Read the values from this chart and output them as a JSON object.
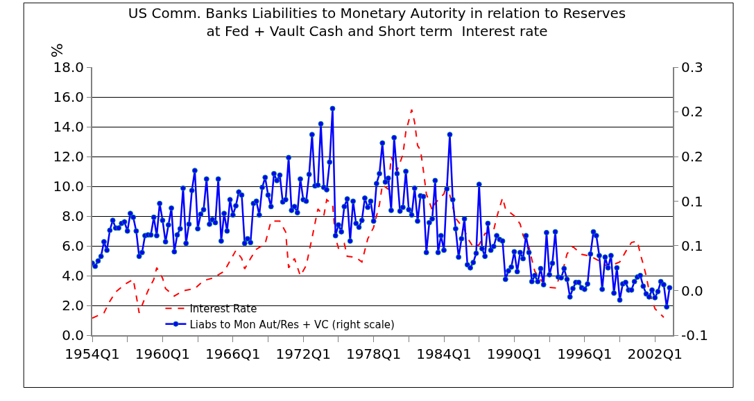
{
  "chart_data": {
    "type": "line",
    "title": "US Comm. Banks Liabilities to Monetary Autority in relation to Reserves\nat Fed + Vault Cash and Short term  Interest rate",
    "ylabel": "%",
    "categories": [
      "1954Q1",
      null,
      null,
      null,
      null,
      null,
      null,
      null,
      null,
      null,
      null,
      null,
      null,
      null,
      null,
      null,
      null,
      null,
      null,
      null,
      null,
      null,
      null,
      null,
      "1960Q1",
      null,
      null,
      null,
      null,
      null,
      null,
      null,
      null,
      null,
      null,
      null,
      null,
      null,
      null,
      null,
      null,
      null,
      null,
      null,
      null,
      null,
      null,
      null,
      "1966Q1",
      null,
      null,
      null,
      null,
      null,
      null,
      null,
      null,
      null,
      null,
      null,
      null,
      null,
      null,
      null,
      null,
      null,
      null,
      null,
      null,
      null,
      null,
      null,
      "1972Q1",
      null,
      null,
      null,
      null,
      null,
      null,
      null,
      null,
      null,
      null,
      null,
      null,
      null,
      null,
      null,
      null,
      null,
      null,
      null,
      null,
      null,
      null,
      null,
      "1978Q1",
      null,
      null,
      null,
      null,
      null,
      null,
      null,
      null,
      null,
      null,
      null,
      null,
      null,
      null,
      null,
      null,
      null,
      null,
      null,
      null,
      null,
      null,
      null,
      "1984Q1",
      null,
      null,
      null,
      null,
      null,
      null,
      null,
      null,
      null,
      null,
      null,
      null,
      null,
      null,
      null,
      null,
      null,
      null,
      null,
      null,
      null,
      null,
      null,
      "1990Q1",
      null,
      null,
      null,
      null,
      null,
      null,
      null,
      null,
      null,
      null,
      null,
      null,
      null,
      null,
      null,
      null,
      null,
      null,
      null,
      null,
      null,
      null,
      null,
      "1996Q1",
      null,
      null,
      null,
      null,
      null,
      null,
      null,
      null,
      null,
      null,
      null,
      null,
      null,
      null,
      null,
      null,
      null,
      null,
      null,
      null,
      null,
      null,
      null,
      "2002Q1",
      null,
      null,
      null,
      null,
      null
    ],
    "ylim": [
      0,
      18
    ],
    "yticks": [
      {
        "value": 0,
        "label": "0.0"
      },
      {
        "value": 2,
        "label": "2.0"
      },
      {
        "value": 4,
        "label": "4.0"
      },
      {
        "value": 6,
        "label": "6.0"
      },
      {
        "value": 8,
        "label": "8.0"
      },
      {
        "value": 10,
        "label": "10.0"
      },
      {
        "value": 12,
        "label": "12.0"
      },
      {
        "value": 14,
        "label": "14.0"
      },
      {
        "value": 16,
        "label": "16.0"
      },
      {
        "value": 18,
        "label": "18.0"
      }
    ],
    "y2lim": [
      -0.05,
      0.3
    ],
    "y2ticks": [
      {
        "value": -0.05,
        "label": "-0.1"
      },
      {
        "value": 0.008,
        "label": "0.0"
      },
      {
        "value": 0.067,
        "label": "0.1"
      },
      {
        "value": 0.125,
        "label": "0.1"
      },
      {
        "value": 0.183,
        "label": "0.2"
      },
      {
        "value": 0.242,
        "label": "0.2"
      },
      {
        "value": 0.3,
        "label": "0.3"
      }
    ],
    "grid": "y",
    "legend": "bottom left",
    "series": [
      {
        "name": "Interest Rate",
        "color": "#ff0000",
        "line_style": "dashed",
        "marker": "none",
        "values": [
          1.15,
          null,
          null,
          null,
          1.5,
          null,
          2.28,
          null,
          2.9,
          null,
          null,
          3.4,
          null,
          null,
          3.75,
          2.67,
          1.5,
          null,
          2.51,
          2.98,
          null,
          3.75,
          4.53,
          null,
          3.83,
          3.13,
          null,
          null,
          2.63,
          null,
          null,
          2.98,
          null,
          null,
          null,
          3.13,
          null,
          null,
          3.67,
          null,
          null,
          3.83,
          null,
          null,
          null,
          4.29,
          null,
          4.99,
          null,
          5.69,
          null,
          5.15,
          4.45,
          null,
          5.15,
          null,
          5.77,
          null,
          null,
          6.15,
          null,
          7.66,
          null,
          null,
          7.66,
          null,
          6.93,
          4.53,
          null,
          5.15,
          null,
          3.99,
          null,
          4.68,
          null,
          6.54,
          null,
          8.48,
          null,
          8.01,
          9.1,
          null,
          8.79,
          6.54,
          5.85,
          null,
          6.15,
          5.3,
          null,
          null,
          5.22,
          null,
          4.92,
          null,
          6.47,
          null,
          7.24,
          null,
          8.79,
          10.11,
          null,
          9.8,
          11.97,
          null,
          11.04,
          null,
          12.13,
          13.67,
          null,
          15.15,
          14.29,
          12.74,
          12.43,
          11.04,
          9.49,
          null,
          8.4,
          8.87,
          null,
          null,
          9.49,
          10.19,
          9.41,
          null,
          7.86,
          null,
          null,
          7.08,
          6.54,
          null,
          5.92,
          null,
          6.08,
          null,
          6.82,
          null,
          null,
          7.08,
          7.91,
          8.59,
          9.22,
          8.48,
          null,
          null,
          8.01,
          null,
          7.47,
          6.7,
          null,
          5.92,
          5.07,
          4.29,
          null,
          null,
          3.47,
          null,
          3.21,
          null,
          3.18,
          null,
          null,
          4.68,
          5.46,
          null,
          5.95,
          null,
          null,
          5.43,
          null,
          null,
          5.3,
          null,
          null,
          4.99,
          null,
          null,
          4.6,
          null,
          null,
          null,
          4.92,
          null,
          5.61,
          null,
          6.23,
          null,
          6.31,
          5.46,
          4.76,
          3.99,
          2.98,
          null,
          1.78,
          null,
          null,
          1.2,
          null,
          null
        ]
      },
      {
        "name": "Liabs to Mon Aut/Res + VC (right scale)",
        "color": "#0000ff",
        "axis": "y2",
        "line_style": "solid",
        "marker": "circle",
        "values": [
          0.044,
          0.04,
          0.047,
          0.053,
          0.072,
          0.061,
          0.087,
          0.1,
          0.09,
          0.09,
          0.096,
          0.098,
          0.086,
          0.109,
          0.104,
          0.086,
          0.053,
          0.058,
          0.08,
          0.081,
          0.081,
          0.104,
          0.08,
          0.122,
          0.1,
          0.072,
          0.094,
          0.116,
          0.059,
          0.081,
          0.089,
          0.142,
          0.07,
          0.095,
          0.139,
          0.165,
          0.089,
          0.108,
          0.114,
          0.154,
          0.095,
          0.101,
          0.097,
          0.154,
          0.073,
          0.109,
          0.086,
          0.127,
          0.107,
          0.119,
          0.137,
          0.133,
          0.07,
          0.076,
          0.071,
          0.122,
          0.125,
          0.107,
          0.143,
          0.156,
          0.133,
          0.118,
          0.161,
          0.152,
          0.159,
          0.124,
          0.127,
          0.182,
          0.113,
          0.118,
          0.11,
          0.154,
          0.127,
          0.125,
          0.16,
          0.212,
          0.145,
          0.146,
          0.226,
          0.143,
          0.14,
          0.176,
          0.246,
          0.08,
          0.094,
          0.085,
          0.118,
          0.128,
          0.073,
          0.125,
          0.096,
          0.091,
          0.1,
          0.129,
          0.117,
          0.125,
          0.099,
          0.148,
          0.161,
          0.201,
          0.15,
          0.155,
          0.113,
          0.208,
          0.161,
          0.112,
          0.117,
          0.164,
          0.114,
          0.107,
          0.142,
          0.099,
          0.132,
          0.131,
          0.058,
          0.097,
          0.102,
          0.152,
          0.058,
          0.08,
          0.061,
          0.141,
          0.212,
          0.127,
          0.089,
          0.052,
          0.076,
          0.102,
          0.042,
          0.038,
          0.045,
          0.057,
          0.147,
          0.063,
          0.053,
          0.096,
          0.061,
          0.066,
          0.08,
          0.075,
          0.073,
          0.023,
          0.034,
          0.039,
          0.059,
          0.033,
          0.058,
          0.05,
          0.08,
          0.058,
          0.02,
          0.028,
          0.02,
          0.037,
          0.016,
          0.084,
          0.029,
          0.044,
          0.085,
          0.026,
          0.025,
          0.037,
          0.023,
          0.0,
          0.011,
          0.019,
          0.019,
          0.012,
          0.01,
          0.017,
          0.056,
          0.085,
          0.08,
          0.054,
          0.01,
          0.052,
          0.038,
          0.054,
          0.005,
          0.038,
          -0.004,
          0.017,
          0.019,
          0.009,
          0.009,
          0.02,
          0.026,
          0.028,
          0.014,
          0.004,
          0.0,
          0.009,
          -0.001,
          0.007,
          0.02,
          0.016,
          -0.013,
          0.012
        ]
      }
    ]
  }
}
